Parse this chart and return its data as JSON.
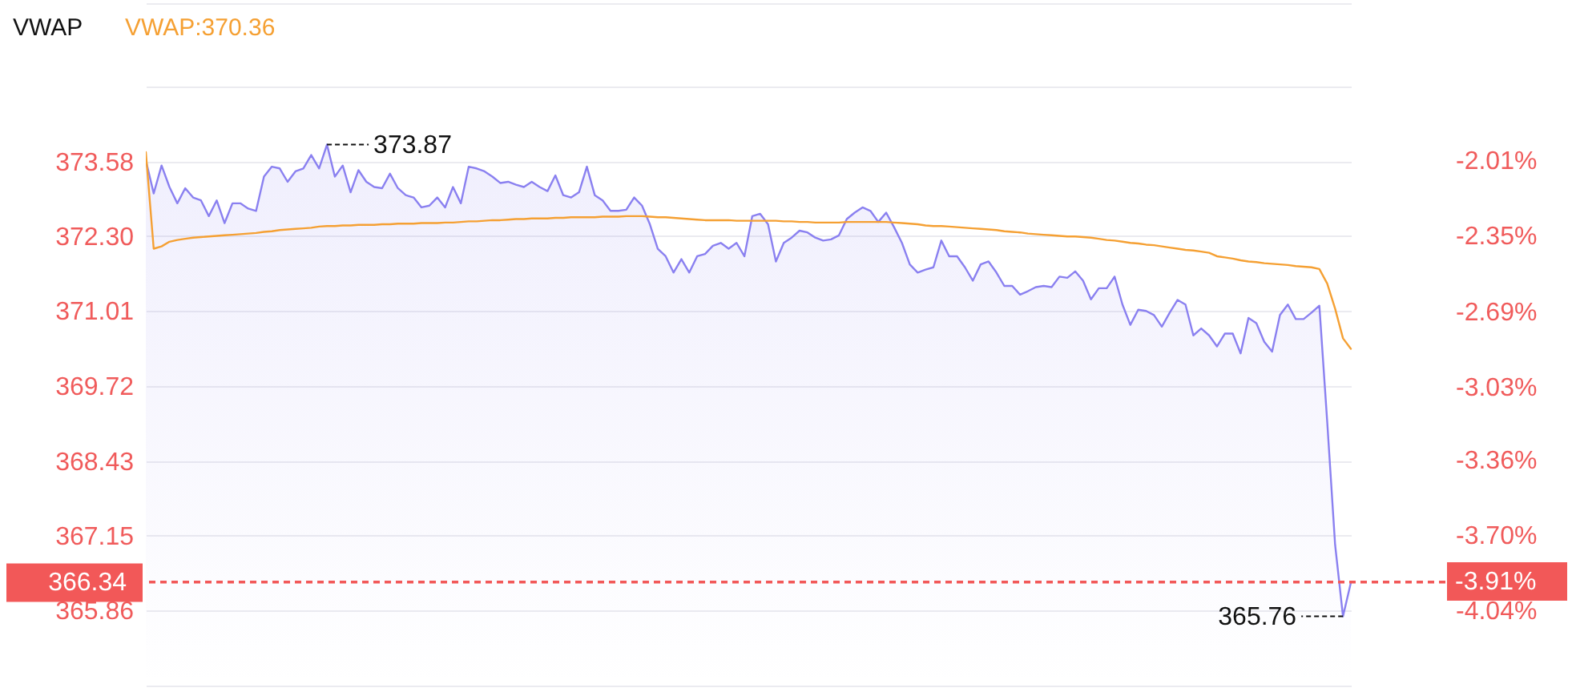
{
  "chart_data": {
    "type": "line",
    "title": "VWAP",
    "grid": "y",
    "categories": [
      null,
      null,
      null,
      null,
      null,
      null,
      null,
      null,
      null,
      null,
      null,
      null,
      null,
      null,
      null,
      null,
      null,
      null,
      null,
      null,
      null,
      null,
      null,
      null,
      null,
      null,
      null,
      null,
      null,
      null,
      null,
      null,
      null,
      null,
      null,
      null,
      null,
      null,
      null,
      null,
      null,
      null,
      null,
      null,
      null,
      null,
      null,
      null,
      null,
      null,
      null,
      null,
      null,
      null,
      null,
      null,
      null,
      null,
      null,
      null,
      null,
      null,
      null,
      null,
      null,
      null,
      null,
      null,
      null,
      null,
      null,
      null,
      null,
      null,
      null,
      null,
      null,
      null,
      null,
      null,
      null,
      null,
      null,
      null,
      null,
      null,
      null,
      null,
      null,
      null,
      null,
      null,
      null,
      null,
      null,
      null,
      null,
      null,
      null,
      null,
      null,
      null,
      null,
      null,
      null,
      null,
      null,
      null,
      null,
      null,
      null,
      null,
      null,
      null,
      null,
      null,
      null,
      null,
      null,
      null,
      null,
      null,
      null,
      null,
      null,
      null,
      null,
      null,
      null,
      null,
      null,
      null,
      null,
      null,
      null,
      null,
      null,
      null,
      null,
      null,
      null,
      null,
      null,
      null,
      null,
      null,
      null,
      null,
      null,
      null,
      null,
      null,
      null,
      null
    ],
    "ylim": [
      364.57,
      376.3
    ],
    "yticks": [
      {
        "value": 376.3,
        "label": null
      },
      {
        "value": 374.87,
        "label": null
      },
      373.58,
      {
        "value": 372.3,
        "label": "372.30"
      },
      371.01,
      369.72,
      368.43,
      367.15,
      365.86,
      {
        "value": 364.57,
        "label": null
      }
    ],
    "y2lim": [
      -4.38,
      -1.3
    ],
    "y2ticks": [
      {
        "value": -2.01,
        "label": "-2.01%"
      },
      {
        "value": -2.35,
        "label": "-2.35%"
      },
      {
        "value": -2.69,
        "label": "-2.69%"
      },
      {
        "value": -3.03,
        "label": "-3.03%"
      },
      {
        "value": -3.36,
        "label": "-3.36%"
      },
      {
        "value": -3.7,
        "label": "-3.70%"
      },
      {
        "value": -4.04,
        "label": "-4.04%"
      }
    ],
    "series": [
      {
        "type": "area",
        "color": "#8a80f0",
        "values": [
          373.6,
          373.03,
          373.51,
          373.14,
          372.86,
          373.12,
          372.96,
          372.91,
          372.64,
          372.91,
          372.52,
          372.86,
          372.86,
          372.77,
          372.73,
          373.32,
          373.49,
          373.46,
          373.23,
          373.41,
          373.46,
          373.69,
          373.46,
          373.87,
          373.32,
          373.51,
          373.05,
          373.43,
          373.23,
          373.14,
          373.12,
          373.37,
          373.12,
          373.0,
          372.96,
          372.79,
          372.82,
          372.96,
          372.79,
          373.14,
          372.86,
          373.49,
          373.46,
          373.41,
          373.32,
          373.21,
          373.23,
          373.18,
          373.14,
          373.23,
          373.14,
          373.07,
          373.34,
          373.0,
          372.96,
          373.05,
          373.49,
          373.0,
          372.91,
          372.73,
          372.73,
          372.75,
          372.96,
          372.82,
          372.5,
          372.08,
          371.95,
          371.67,
          371.9,
          371.67,
          371.95,
          371.99,
          372.13,
          372.18,
          372.08,
          372.18,
          371.95,
          372.64,
          372.68,
          372.5,
          371.86,
          372.18,
          372.27,
          372.39,
          372.36,
          372.27,
          372.22,
          372.24,
          372.31,
          372.59,
          372.7,
          372.79,
          372.73,
          372.54,
          372.7,
          372.45,
          372.18,
          371.81,
          371.67,
          371.72,
          371.76,
          372.22,
          371.95,
          371.95,
          371.76,
          371.53,
          371.81,
          371.86,
          371.67,
          371.44,
          371.44,
          371.29,
          371.35,
          371.42,
          371.44,
          371.42,
          371.6,
          371.58,
          371.69,
          371.53,
          371.21,
          371.4,
          371.4,
          371.6,
          371.12,
          370.77,
          371.03,
          371.01,
          370.94,
          370.74,
          370.98,
          371.2,
          371.12,
          370.59,
          370.71,
          370.59,
          370.4,
          370.62,
          370.62,
          370.28,
          370.89,
          370.8,
          370.48,
          370.31,
          370.94,
          371.12,
          370.87,
          370.87,
          370.98,
          371.1,
          369.1,
          366.99,
          365.76,
          366.34
        ],
        "value_labels": [
          null,
          null,
          null,
          null,
          null,
          null,
          null,
          null,
          null,
          null,
          null,
          null,
          null,
          null,
          null,
          null,
          null,
          null,
          null,
          null,
          null,
          null,
          null,
          "373.87",
          null,
          null,
          null,
          null,
          null,
          null,
          null,
          null,
          null,
          null,
          null,
          null,
          null,
          null,
          null,
          null,
          null,
          null,
          null,
          null,
          null,
          null,
          null,
          null,
          null,
          null,
          null,
          null,
          null,
          null,
          null,
          null,
          null,
          null,
          null,
          null,
          null,
          null,
          null,
          null,
          null,
          null,
          null,
          null,
          null,
          null,
          null,
          null,
          null,
          null,
          null,
          null,
          null,
          null,
          null,
          null,
          null,
          null,
          null,
          null,
          null,
          null,
          null,
          null,
          null,
          null,
          null,
          null,
          null,
          null,
          null,
          null,
          null,
          null,
          null,
          null,
          null,
          null,
          null,
          null,
          null,
          null,
          null,
          null,
          null,
          null,
          null,
          null,
          null,
          null,
          null,
          null,
          null,
          null,
          null,
          null,
          null,
          null,
          null,
          null,
          null,
          null,
          null,
          null,
          null,
          null,
          null,
          null,
          null,
          null,
          null,
          null,
          null,
          null,
          null,
          null,
          null,
          null,
          null,
          null,
          null,
          null,
          null,
          null,
          null,
          null,
          null,
          null,
          "365.76",
          null
        ]
      },
      {
        "name": "VWAP:370.36",
        "color": "#f5a033",
        "values": [
          373.74,
          372.08,
          372.12,
          372.2,
          372.23,
          372.25,
          372.27,
          372.28,
          372.29,
          372.3,
          372.31,
          372.32,
          372.33,
          372.34,
          372.35,
          372.37,
          372.38,
          372.4,
          372.41,
          372.42,
          372.43,
          372.44,
          372.46,
          372.47,
          372.47,
          372.48,
          372.48,
          372.49,
          372.49,
          372.49,
          372.5,
          372.5,
          372.51,
          372.51,
          372.51,
          372.52,
          372.52,
          372.52,
          372.53,
          372.53,
          372.54,
          372.55,
          372.55,
          372.56,
          372.57,
          372.57,
          372.58,
          372.59,
          372.59,
          372.6,
          372.6,
          372.6,
          372.61,
          372.61,
          372.62,
          372.62,
          372.62,
          372.62,
          372.63,
          372.63,
          372.63,
          372.64,
          372.64,
          372.64,
          372.63,
          372.62,
          372.62,
          372.61,
          372.6,
          372.59,
          372.58,
          372.57,
          372.57,
          372.57,
          372.57,
          372.56,
          372.56,
          372.56,
          372.56,
          372.56,
          372.56,
          372.55,
          372.55,
          372.54,
          372.54,
          372.53,
          372.53,
          372.53,
          372.53,
          372.54,
          372.54,
          372.54,
          372.54,
          372.54,
          372.54,
          372.53,
          372.52,
          372.51,
          372.5,
          372.48,
          372.47,
          372.47,
          372.46,
          372.45,
          372.44,
          372.43,
          372.42,
          372.41,
          372.4,
          372.38,
          372.37,
          372.36,
          372.34,
          372.33,
          372.32,
          372.31,
          372.3,
          372.29,
          372.29,
          372.28,
          372.27,
          372.25,
          372.23,
          372.22,
          372.2,
          372.18,
          372.17,
          372.15,
          372.14,
          372.12,
          372.1,
          372.08,
          372.06,
          372.05,
          372.03,
          372.01,
          371.95,
          371.93,
          371.91,
          371.88,
          371.86,
          371.85,
          371.83,
          371.82,
          371.81,
          371.8,
          371.78,
          371.77,
          371.76,
          371.73,
          371.48,
          371.05,
          370.54,
          370.36
        ]
      }
    ],
    "ref_lines": [
      {
        "axis": "y",
        "value": 366.34,
        "label": "366.34",
        "color": "#f25858",
        "line_style": "dashed"
      },
      {
        "axis": "y2",
        "value": -3.91,
        "label": "-3.91%",
        "color": "#f25858",
        "line_style": "dashed"
      }
    ]
  }
}
